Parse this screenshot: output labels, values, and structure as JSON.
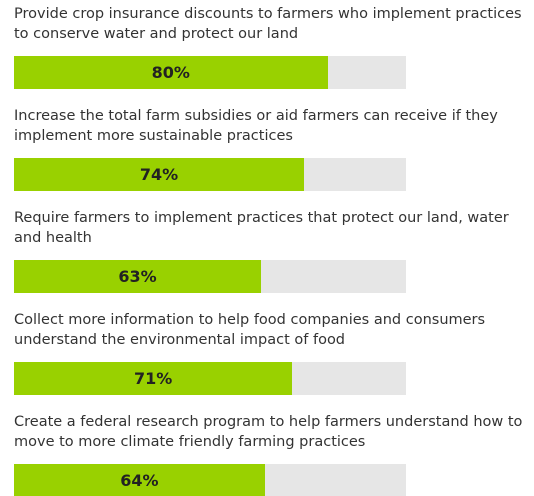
{
  "chart_data": {
    "type": "bar",
    "orientation": "horizontal",
    "categories": [
      "Provide crop insurance discounts to farmers who implement practices to conserve water and protect our land",
      "Increase the total farm subsidies or aid farmers can receive if they implement more sustainable practices",
      "Require farmers to implement practices that protect our land, water and health",
      "Collect more information to help food companies and consumers understand the environmental impact of food",
      "Create a federal research program to help farmers understand how to move to more climate friendly farming practices"
    ],
    "values": [
      80,
      74,
      63,
      71,
      64
    ],
    "value_labels": [
      "80%",
      "74%",
      "63%",
      "71%",
      "64%"
    ],
    "xlim": [
      0,
      100
    ],
    "color": "#99d100",
    "track_color": "#e6e6e6"
  }
}
